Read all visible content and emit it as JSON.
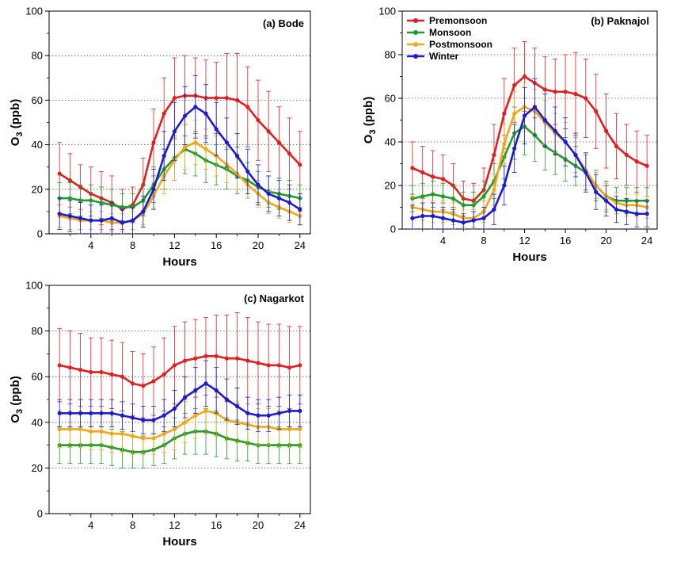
{
  "figure": {
    "panel_titles": [
      "(a) Bode",
      "(b) Paknajol",
      "(c) Nagarkot"
    ],
    "xlabel": "Hours",
    "ylabel_main": "O",
    "ylabel_sub": "3",
    "ylabel_unit": " (ppb)"
  },
  "legend": [
    {
      "label": "Premonsoon",
      "color": "#e02020"
    },
    {
      "label": "Monsoon",
      "color": "#1e9e28"
    },
    {
      "label": "Postmonsoon",
      "color": "#f0a818"
    },
    {
      "label": "Winter",
      "color": "#1c1ccc"
    }
  ],
  "chart_data": [
    {
      "type": "line",
      "title": "(a) Bode",
      "xlabel": "Hours",
      "ylabel": "O3 (ppb)",
      "xlim": [
        0,
        25
      ],
      "ylim": [
        0,
        100
      ],
      "xticks": [
        4,
        8,
        12,
        16,
        20,
        24
      ],
      "yticks": [
        0,
        20,
        40,
        60,
        80,
        100
      ],
      "grid": "horizontal dotted",
      "x": [
        1,
        2,
        3,
        4,
        5,
        6,
        7,
        8,
        9,
        10,
        11,
        12,
        13,
        14,
        15,
        16,
        17,
        18,
        19,
        20,
        21,
        22,
        23,
        24
      ],
      "series": [
        {
          "name": "Premonsoon",
          "color": "#e02020",
          "values": [
            27,
            24,
            21,
            18,
            16,
            14,
            11,
            13,
            22,
            41,
            54,
            61,
            62,
            62,
            61,
            61,
            61,
            60,
            57,
            51,
            46,
            41,
            36,
            31
          ],
          "error": [
            14,
            12,
            10,
            12,
            12,
            12,
            9,
            8,
            12,
            15,
            16,
            18,
            18,
            17,
            17,
            16,
            20,
            21,
            18,
            18,
            18,
            16,
            16,
            15
          ]
        },
        {
          "name": "Monsoon",
          "color": "#1e9e28",
          "values": [
            16,
            16,
            15,
            15,
            14,
            13,
            12,
            12,
            15,
            22,
            29,
            34,
            38,
            36,
            33,
            31,
            29,
            26,
            24,
            21,
            19,
            18,
            17,
            16
          ],
          "error": [
            7,
            7,
            7,
            7,
            7,
            7,
            6,
            6,
            7,
            8,
            9,
            10,
            11,
            10,
            10,
            9,
            9,
            8,
            8,
            7,
            7,
            7,
            7,
            6
          ]
        },
        {
          "name": "Postmonsoon",
          "color": "#f0a818",
          "values": [
            8,
            7,
            6,
            6,
            6,
            5,
            5,
            6,
            9,
            17,
            26,
            33,
            39,
            41,
            38,
            35,
            31,
            27,
            22,
            18,
            14,
            12,
            10,
            8
          ],
          "error": [
            5,
            5,
            4,
            4,
            4,
            4,
            4,
            4,
            5,
            6,
            8,
            9,
            10,
            10,
            9,
            9,
            8,
            7,
            6,
            6,
            5,
            5,
            5,
            4
          ]
        },
        {
          "name": "Winter",
          "color": "#1c1ccc",
          "values": [
            9,
            8,
            7,
            6,
            6,
            7,
            5,
            6,
            10,
            20,
            35,
            46,
            53,
            57,
            54,
            47,
            41,
            35,
            28,
            22,
            18,
            16,
            14,
            11
          ],
          "error": [
            7,
            7,
            7,
            7,
            7,
            7,
            6,
            6,
            7,
            9,
            11,
            13,
            13,
            14,
            13,
            12,
            11,
            10,
            10,
            9,
            8,
            8,
            8,
            7
          ]
        }
      ]
    },
    {
      "type": "line",
      "title": "(b) Paknajol",
      "xlabel": "Hours",
      "ylabel": "O3 (ppb)",
      "xlim": [
        0,
        25
      ],
      "ylim": [
        0,
        100
      ],
      "xticks": [
        4,
        8,
        12,
        16,
        20,
        24
      ],
      "yticks": [
        0,
        20,
        40,
        60,
        80,
        100
      ],
      "grid": "horizontal dotted",
      "legend_position": "top-left",
      "x": [
        1,
        2,
        3,
        4,
        5,
        6,
        7,
        8,
        9,
        10,
        11,
        12,
        13,
        14,
        15,
        16,
        17,
        18,
        19,
        20,
        21,
        22,
        23,
        24
      ],
      "series": [
        {
          "name": "Premonsoon",
          "color": "#e02020",
          "values": [
            28,
            26,
            24,
            23,
            20,
            14,
            13,
            18,
            34,
            53,
            66,
            70,
            67,
            64,
            63,
            63,
            62,
            60,
            54,
            45,
            38,
            34,
            31,
            29
          ],
          "error": [
            12,
            12,
            12,
            11,
            10,
            8,
            8,
            10,
            14,
            16,
            17,
            16,
            16,
            15,
            15,
            17,
            19,
            18,
            17,
            17,
            15,
            14,
            14,
            14
          ]
        },
        {
          "name": "Monsoon",
          "color": "#1e9e28",
          "values": [
            14,
            15,
            16,
            15,
            14,
            11,
            11,
            15,
            22,
            33,
            44,
            47,
            43,
            38,
            35,
            32,
            29,
            26,
            20,
            15,
            13,
            13,
            13,
            13
          ],
          "error": [
            6,
            6,
            6,
            6,
            6,
            6,
            6,
            7,
            8,
            10,
            12,
            13,
            12,
            11,
            10,
            10,
            9,
            8,
            7,
            7,
            6,
            6,
            6,
            6
          ]
        },
        {
          "name": "Postmonsoon",
          "color": "#f0a818",
          "values": [
            10,
            9,
            8,
            8,
            7,
            5,
            5,
            8,
            18,
            39,
            53,
            56,
            54,
            49,
            44,
            40,
            34,
            27,
            20,
            15,
            12,
            11,
            11,
            10
          ],
          "error": [
            5,
            5,
            5,
            5,
            5,
            4,
            4,
            5,
            7,
            9,
            10,
            11,
            10,
            10,
            9,
            9,
            8,
            7,
            6,
            6,
            5,
            5,
            5,
            5
          ]
        },
        {
          "name": "Winter",
          "color": "#1c1ccc",
          "values": [
            5,
            6,
            6,
            5,
            4,
            3,
            4,
            5,
            9,
            20,
            37,
            52,
            56,
            50,
            45,
            40,
            34,
            26,
            17,
            13,
            9,
            8,
            7,
            7
          ],
          "error": [
            6,
            6,
            6,
            5,
            5,
            4,
            4,
            5,
            7,
            9,
            11,
            13,
            13,
            12,
            11,
            11,
            10,
            9,
            8,
            7,
            6,
            6,
            6,
            6
          ]
        }
      ]
    },
    {
      "type": "line",
      "title": "(c) Nagarkot",
      "xlabel": "Hours",
      "ylabel": "O3 (ppb)",
      "xlim": [
        0,
        25
      ],
      "ylim": [
        0,
        100
      ],
      "xticks": [
        4,
        8,
        12,
        16,
        20,
        24
      ],
      "yticks": [
        0,
        20,
        40,
        60,
        80,
        100
      ],
      "grid": "horizontal dotted",
      "x": [
        1,
        2,
        3,
        4,
        5,
        6,
        7,
        8,
        9,
        10,
        11,
        12,
        13,
        14,
        15,
        16,
        17,
        18,
        19,
        20,
        21,
        22,
        23,
        24
      ],
      "series": [
        {
          "name": "Premonsoon",
          "color": "#e02020",
          "values": [
            65,
            64,
            63,
            62,
            62,
            61,
            60,
            57,
            56,
            58,
            61,
            65,
            67,
            68,
            69,
            69,
            68,
            68,
            67,
            66,
            65,
            65,
            64,
            65
          ],
          "error": [
            16,
            16,
            16,
            15,
            15,
            15,
            15,
            14,
            14,
            15,
            16,
            17,
            17,
            17,
            17,
            18,
            19,
            20,
            19,
            18,
            18,
            18,
            18,
            17
          ]
        },
        {
          "name": "Monsoon",
          "color": "#1e9e28",
          "values": [
            30,
            30,
            30,
            30,
            30,
            29,
            28,
            27,
            27,
            28,
            30,
            33,
            35,
            36,
            36,
            35,
            33,
            32,
            31,
            30,
            30,
            30,
            30,
            30
          ],
          "error": [
            8,
            8,
            8,
            8,
            8,
            8,
            8,
            7,
            7,
            7,
            8,
            9,
            9,
            10,
            10,
            10,
            9,
            9,
            8,
            8,
            8,
            8,
            8,
            8
          ]
        },
        {
          "name": "Postmonsoon",
          "color": "#f0a818",
          "values": [
            37,
            37,
            37,
            36,
            36,
            35,
            35,
            34,
            33,
            33,
            35,
            37,
            40,
            43,
            45,
            44,
            41,
            40,
            39,
            38,
            38,
            37,
            37,
            37
          ],
          "error": [
            8,
            8,
            8,
            8,
            8,
            8,
            8,
            8,
            7,
            7,
            8,
            9,
            9,
            10,
            10,
            10,
            9,
            9,
            9,
            8,
            8,
            8,
            8,
            8
          ]
        },
        {
          "name": "Winter",
          "color": "#1c1ccc",
          "values": [
            44,
            44,
            44,
            44,
            44,
            44,
            43,
            42,
            41,
            41,
            43,
            46,
            51,
            54,
            57,
            54,
            50,
            47,
            44,
            43,
            43,
            44,
            45,
            45
          ],
          "error": [
            6,
            6,
            6,
            6,
            6,
            6,
            6,
            6,
            6,
            6,
            7,
            8,
            9,
            10,
            10,
            10,
            9,
            8,
            7,
            7,
            7,
            7,
            7,
            7
          ]
        }
      ]
    }
  ]
}
